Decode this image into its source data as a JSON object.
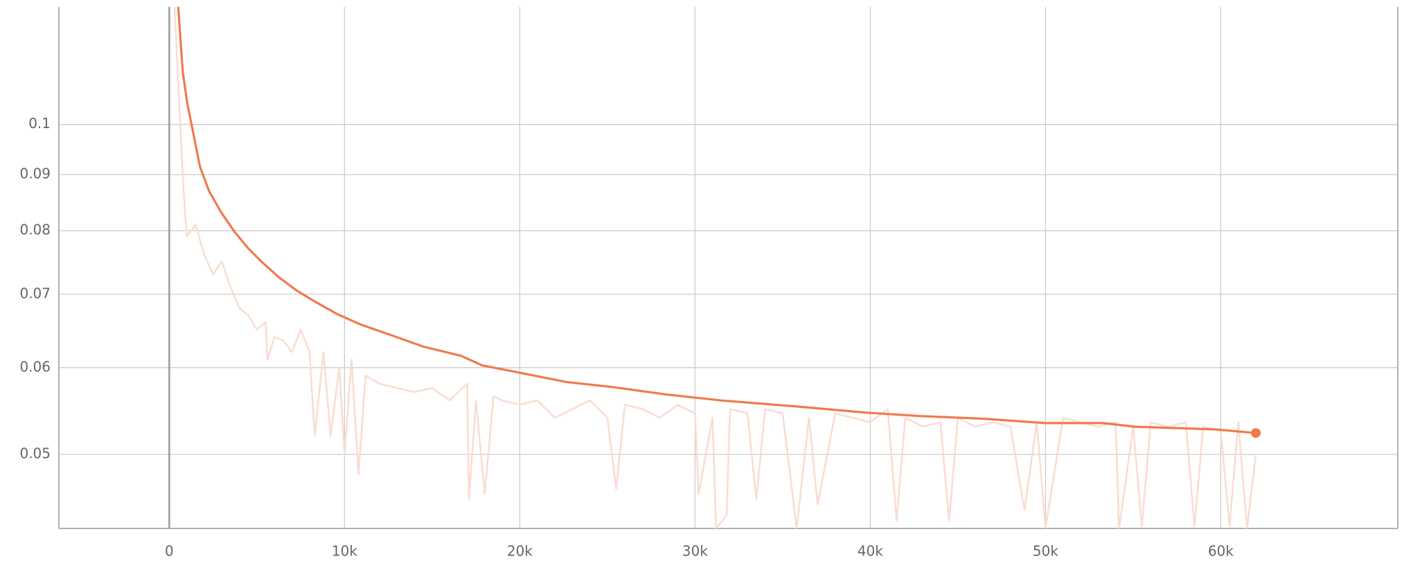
{
  "chart_data": {
    "type": "line",
    "log_y": true,
    "grid": true,
    "xlim": [
      -6300,
      70100
    ],
    "ylim": [
      0.0428,
      0.128
    ],
    "xticks": [
      0,
      {
        "value": 10000,
        "label": "10k"
      },
      {
        "value": 20000,
        "label": "20k"
      },
      {
        "value": 30000,
        "label": "30k"
      },
      {
        "value": 40000,
        "label": "40k"
      },
      {
        "value": 50000,
        "label": "50k"
      },
      {
        "value": 60000,
        "label": "60k"
      }
    ],
    "yticks": [
      0.05,
      0.06,
      0.07,
      0.08,
      0.09,
      0.1
    ],
    "series": [
      {
        "color": "#f9ddd3",
        "x": [
          300,
          500,
          800,
          1000,
          1500,
          2000,
          2500,
          3000,
          3500,
          4000,
          4500,
          5000,
          5500,
          5600,
          6000,
          6500,
          7000,
          7500,
          8000,
          8300,
          8800,
          9200,
          9700,
          10000,
          10400,
          10800,
          11200,
          12000,
          13000,
          14000,
          15000,
          16000,
          17000,
          17100,
          17500,
          18000,
          18500,
          19000,
          20000,
          21000,
          22000,
          23000,
          24000,
          25000,
          25500,
          26000,
          27000,
          28000,
          29000,
          30000,
          30200,
          31000,
          31200,
          31800,
          32000,
          33000,
          33500,
          34000,
          35000,
          35800,
          36500,
          37000,
          38000,
          39000,
          40000,
          41000,
          41500,
          42000,
          43000,
          44000,
          44500,
          45000,
          46000,
          47000,
          48000,
          48800,
          49500,
          50000,
          51000,
          52000,
          53000,
          54000,
          54200,
          55000,
          55500,
          56000,
          57000,
          58000,
          58500,
          59000,
          60000,
          60500,
          61000,
          61500,
          62000
        ],
        "values": [
          0.128,
          0.11,
          0.088,
          0.079,
          0.081,
          0.076,
          0.073,
          0.075,
          0.071,
          0.068,
          0.067,
          0.065,
          0.066,
          0.061,
          0.064,
          0.0635,
          0.062,
          0.065,
          0.062,
          0.052,
          0.062,
          0.052,
          0.06,
          0.05,
          0.061,
          0.048,
          0.059,
          0.058,
          0.0575,
          0.057,
          0.0575,
          0.056,
          0.058,
          0.0455,
          0.056,
          0.046,
          0.0565,
          0.056,
          0.0555,
          0.056,
          0.054,
          0.055,
          0.056,
          0.054,
          0.0465,
          0.0555,
          0.055,
          0.054,
          0.0555,
          0.0545,
          0.046,
          0.054,
          0.0428,
          0.044,
          0.055,
          0.0545,
          0.0455,
          0.055,
          0.0545,
          0.0428,
          0.054,
          0.045,
          0.0545,
          0.054,
          0.0535,
          0.055,
          0.0435,
          0.054,
          0.053,
          0.0535,
          0.0435,
          0.054,
          0.053,
          0.0535,
          0.053,
          0.0445,
          0.0535,
          0.0428,
          0.054,
          0.0535,
          0.053,
          0.0535,
          0.0428,
          0.053,
          0.043,
          0.0535,
          0.053,
          0.0535,
          0.043,
          0.053,
          0.0525,
          0.043,
          0.0535,
          0.0428,
          0.05
        ]
      },
      {
        "color": "#ef7a4c",
        "x": [
          510,
          770,
          1030,
          1390,
          1750,
          2260,
          2930,
          3700,
          4470,
          5240,
          6270,
          7300,
          8330,
          9610,
          10900,
          12700,
          14500,
          16660,
          17840,
          19900,
          22700,
          25300,
          28400,
          31500,
          35800,
          39700,
          42800,
          46400,
          50000,
          53300,
          55100,
          59700,
          62000
        ],
        "values": [
          0.128,
          0.1116,
          0.1044,
          0.0978,
          0.0915,
          0.087,
          0.0833,
          0.0799,
          0.0772,
          0.075,
          0.0725,
          0.0705,
          0.0689,
          0.0671,
          0.0657,
          0.0642,
          0.0627,
          0.0615,
          0.0603,
          0.0594,
          0.0582,
          0.0576,
          0.0567,
          0.056,
          0.0553,
          0.0546,
          0.0542,
          0.0539,
          0.0534,
          0.0534,
          0.053,
          0.0527,
          0.0523
        ]
      }
    ]
  }
}
